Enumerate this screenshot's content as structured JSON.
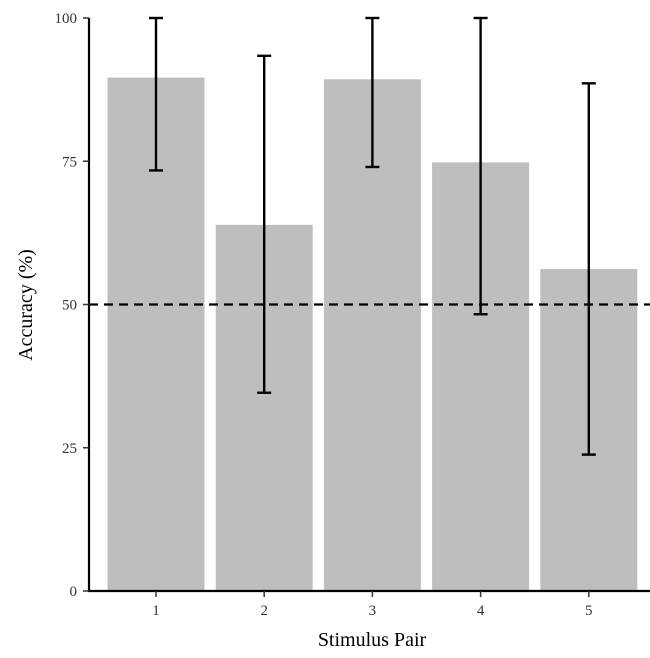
{
  "chart_data": {
    "type": "bar",
    "title": "",
    "xlabel": "Stimulus Pair",
    "ylabel": "Accuracy (%)",
    "categories": [
      "1",
      "2",
      "3",
      "4",
      "5"
    ],
    "values": [
      89.6,
      63.9,
      89.3,
      74.8,
      56.2
    ],
    "error_bars": [
      {
        "low": 73.4,
        "high": 100
      },
      {
        "low": 34.6,
        "high": 93.4
      },
      {
        "low": 74.0,
        "high": 100
      },
      {
        "low": 48.3,
        "high": 100
      },
      {
        "low": 23.8,
        "high": 88.6
      }
    ],
    "reference_line": {
      "y": 50,
      "style": "dashed",
      "color": "#000000"
    },
    "ylim": [
      0,
      100
    ],
    "yticks": [
      "0",
      "25",
      "50",
      "75",
      "100"
    ],
    "grid": false,
    "bar_color": "#bebebe",
    "errorbar_color": "#000000"
  }
}
